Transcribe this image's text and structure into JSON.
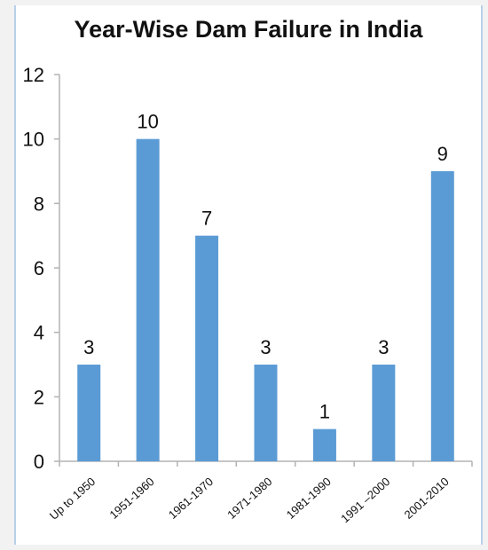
{
  "chart_data": {
    "type": "bar",
    "title": "Year-Wise Dam Failure in India",
    "categories": [
      "Up  to 1950",
      "1951-1960",
      "1961-1970",
      "1971-1980",
      "1981-1990",
      "1991 –2000",
      "2001-2010"
    ],
    "values": [
      3,
      10,
      7,
      3,
      1,
      3,
      9
    ],
    "data_labels": [
      "3",
      "10",
      "7",
      "3",
      "1",
      "3",
      "9"
    ],
    "y_ticks": [
      "0",
      "2",
      "4",
      "6",
      "8",
      "10",
      "12"
    ],
    "xlabel": "",
    "ylabel": "",
    "ylim": [
      0,
      12
    ],
    "grid": false,
    "legend": "none",
    "bar_color": "#5b9bd5",
    "axis_color": "#b3b3b3"
  }
}
